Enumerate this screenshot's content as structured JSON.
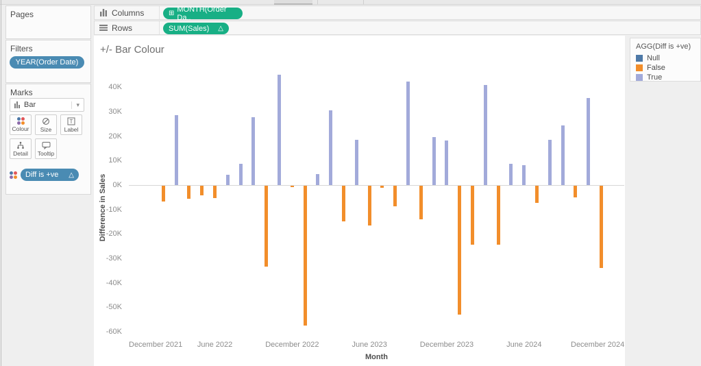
{
  "shelves": {
    "columns": {
      "label": "Columns",
      "pill": "MONTH(Order Da..",
      "pill_prefix": "⊞"
    },
    "rows": {
      "label": "Rows",
      "pill": "SUM(Sales)",
      "pill_suffix": "△"
    }
  },
  "sidebar": {
    "pages": {
      "label": "Pages"
    },
    "filters": {
      "label": "Filters",
      "pill": "YEAR(Order Date)"
    },
    "marks": {
      "label": "Marks",
      "mark_type": "Bar",
      "dropdown_caret": "▾",
      "buttons": [
        {
          "label": "Colour"
        },
        {
          "label": "Size"
        },
        {
          "label": "Label"
        },
        {
          "label": "Detail"
        },
        {
          "label": "Tooltip"
        }
      ],
      "colour_shelf_pill": {
        "label": "Diff is +ve",
        "suffix": "△"
      }
    }
  },
  "legend": {
    "title": "AGG(Diff is +ve)",
    "items": [
      {
        "label": "Null",
        "color": "#4e79a7"
      },
      {
        "label": "False",
        "color": "#f28e2b"
      },
      {
        "label": "True",
        "color": "#a2aada"
      }
    ]
  },
  "chart_data": {
    "type": "bar",
    "title": "+/- Bar Colour",
    "xlabel": "Month",
    "ylabel": "Difference in Sales",
    "unit": "thousands (K)",
    "ylim_k": [
      -62,
      46
    ],
    "grid": "zero-line-only",
    "legend_position": "top-right",
    "y_ticks_k": [
      40,
      30,
      20,
      10,
      0,
      -10,
      -20,
      -30,
      -40,
      -50,
      -60
    ],
    "x_ticks": [
      {
        "label": "December 2021",
        "month_index": -1
      },
      {
        "label": "June 2022",
        "month_index": 5
      },
      {
        "label": "December 2022",
        "month_index": 11
      },
      {
        "label": "June 2023",
        "month_index": 17
      },
      {
        "label": "December 2023",
        "month_index": 23
      },
      {
        "label": "June 2024",
        "month_index": 29
      },
      {
        "label": "December 2024",
        "month_index": 35
      }
    ],
    "series_colors": {
      "Null": "#4e79a7",
      "False": "#f28e2b",
      "True": "#a2aada"
    },
    "points": [
      {
        "month": "Jan 2022",
        "diff_k": null,
        "flag": "Null"
      },
      {
        "month": "Feb 2022",
        "diff_k": -6.4,
        "flag": "False"
      },
      {
        "month": "Mar 2022",
        "diff_k": 28.6,
        "flag": "True"
      },
      {
        "month": "Apr 2022",
        "diff_k": -5.2,
        "flag": "False"
      },
      {
        "month": "May 2022",
        "diff_k": -3.9,
        "flag": "False"
      },
      {
        "month": "Jun 2022",
        "diff_k": -5.1,
        "flag": "False"
      },
      {
        "month": "Jul 2022",
        "diff_k": 4.2,
        "flag": "True"
      },
      {
        "month": "Aug 2022",
        "diff_k": 8.7,
        "flag": "True"
      },
      {
        "month": "Sep 2022",
        "diff_k": 27.8,
        "flag": "True"
      },
      {
        "month": "Oct 2022",
        "diff_k": -33.2,
        "flag": "False"
      },
      {
        "month": "Nov 2022",
        "diff_k": 45.1,
        "flag": "True"
      },
      {
        "month": "Dec 2022",
        "diff_k": -0.7,
        "flag": "False"
      },
      {
        "month": "Jan 2023",
        "diff_k": -57.3,
        "flag": "False"
      },
      {
        "month": "Feb 2023",
        "diff_k": 4.4,
        "flag": "True"
      },
      {
        "month": "Mar 2023",
        "diff_k": 30.6,
        "flag": "True"
      },
      {
        "month": "Apr 2023",
        "diff_k": -14.5,
        "flag": "False"
      },
      {
        "month": "May 2023",
        "diff_k": 18.6,
        "flag": "True"
      },
      {
        "month": "Jun 2023",
        "diff_k": -16.3,
        "flag": "False"
      },
      {
        "month": "Jul 2023",
        "diff_k": -0.9,
        "flag": "False"
      },
      {
        "month": "Aug 2023",
        "diff_k": -8.4,
        "flag": "False"
      },
      {
        "month": "Sep 2023",
        "diff_k": 42.3,
        "flag": "True"
      },
      {
        "month": "Oct 2023",
        "diff_k": -13.7,
        "flag": "False"
      },
      {
        "month": "Nov 2023",
        "diff_k": 19.6,
        "flag": "True"
      },
      {
        "month": "Dec 2023",
        "diff_k": 18.2,
        "flag": "True"
      },
      {
        "month": "Jan 2024",
        "diff_k": -52.8,
        "flag": "False"
      },
      {
        "month": "Feb 2024",
        "diff_k": -24.1,
        "flag": "False"
      },
      {
        "month": "Mar 2024",
        "diff_k": 40.8,
        "flag": "True"
      },
      {
        "month": "Apr 2024",
        "diff_k": -24.1,
        "flag": "False"
      },
      {
        "month": "May 2024",
        "diff_k": 8.7,
        "flag": "True"
      },
      {
        "month": "Jun 2024",
        "diff_k": 8.1,
        "flag": "True"
      },
      {
        "month": "Jul 2024",
        "diff_k": -7.0,
        "flag": "False"
      },
      {
        "month": "Aug 2024",
        "diff_k": 18.5,
        "flag": "True"
      },
      {
        "month": "Sep 2024",
        "diff_k": 24.3,
        "flag": "True"
      },
      {
        "month": "Oct 2024",
        "diff_k": -4.7,
        "flag": "False"
      },
      {
        "month": "Nov 2024",
        "diff_k": 35.5,
        "flag": "True"
      },
      {
        "month": "Dec 2024",
        "diff_k": -33.6,
        "flag": "False"
      }
    ]
  }
}
